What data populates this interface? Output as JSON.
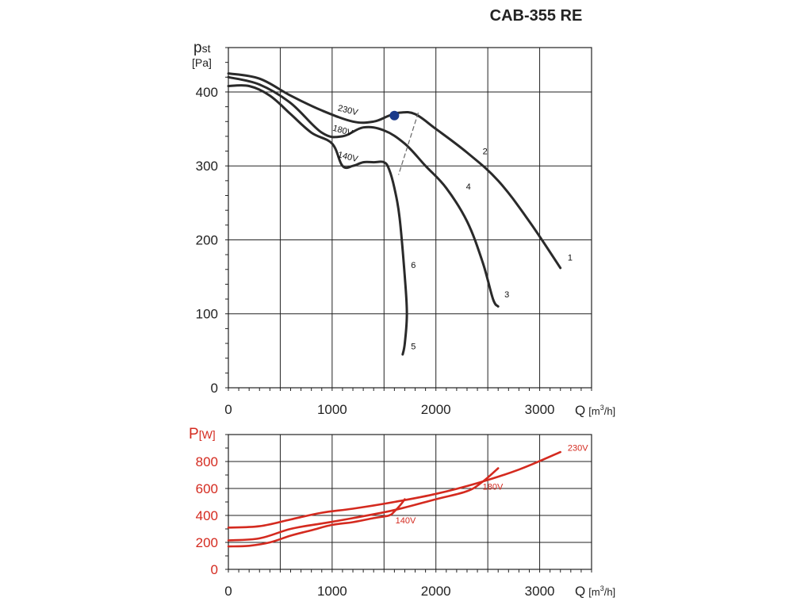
{
  "title": "CAB-355 RE",
  "colors": {
    "pressure_curve": "#2a2a2a",
    "power_curve": "#d42a1f",
    "operating_point": "#1a3a8a",
    "axis": "#222222"
  },
  "chart_data": [
    {
      "type": "line",
      "title": "CAB-355 RE",
      "ylabel_main": "p",
      "ylabel_sub": "st",
      "yunit": "[Pa]",
      "xlabel": "Q",
      "xunit_pre": "[m",
      "xunit_sup": "3",
      "xunit_post": "/h]",
      "xlim": [
        0,
        3500
      ],
      "ylim": [
        0,
        460
      ],
      "x_ticks": [
        0,
        1000,
        2000,
        3000
      ],
      "y_ticks": [
        0,
        100,
        200,
        300,
        400
      ],
      "grid": true,
      "series": [
        {
          "name": "230V",
          "x": [
            0,
            300,
            600,
            900,
            1200,
            1400,
            1550,
            1650,
            1800,
            2000,
            2300,
            2600,
            2900,
            3200
          ],
          "y": [
            425,
            418,
            395,
            375,
            360,
            360,
            368,
            372,
            370,
            350,
            318,
            280,
            225,
            162
          ]
        },
        {
          "name": "180V",
          "x": [
            0,
            300,
            600,
            900,
            1100,
            1300,
            1500,
            1700,
            1900,
            2100,
            2300,
            2450,
            2550,
            2600
          ],
          "y": [
            420,
            410,
            385,
            345,
            340,
            352,
            348,
            330,
            300,
            270,
            225,
            170,
            120,
            110
          ]
        },
        {
          "name": "140V",
          "x": [
            0,
            200,
            400,
            600,
            800,
            1000,
            1100,
            1200,
            1300,
            1400,
            1500,
            1550,
            1600,
            1650,
            1700,
            1720,
            1700,
            1680
          ],
          "y": [
            408,
            408,
            395,
            370,
            345,
            330,
            300,
            300,
            305,
            305,
            305,
            295,
            270,
            230,
            150,
            100,
            60,
            45
          ]
        }
      ],
      "curve_numbers": [
        {
          "label": "1",
          "x": 3270,
          "y": 172
        },
        {
          "label": "2",
          "x": 2450,
          "y": 316
        },
        {
          "label": "3",
          "x": 2660,
          "y": 122
        },
        {
          "label": "4",
          "x": 2290,
          "y": 268
        },
        {
          "label": "5",
          "x": 1760,
          "y": 52
        },
        {
          "label": "6",
          "x": 1760,
          "y": 162
        }
      ],
      "voltage_labels": [
        {
          "label": "230V",
          "x": 1050,
          "y": 375
        },
        {
          "label": "180V",
          "x": 1000,
          "y": 348
        },
        {
          "label": "140V",
          "x": 1050,
          "y": 312
        }
      ],
      "operating_point": {
        "x": 1600,
        "y": 368
      },
      "max_flow_line": {
        "x": [
          1830,
          1640
        ],
        "y": [
          372,
          288
        ]
      }
    },
    {
      "type": "line",
      "ylabel_main": "P",
      "yunit": "[W]",
      "xlabel": "Q",
      "xunit_pre": "[m",
      "xunit_sup": "3",
      "xunit_post": "/h]",
      "xlim": [
        0,
        3500
      ],
      "ylim": [
        0,
        1000
      ],
      "x_ticks": [
        0,
        1000,
        2000,
        3000
      ],
      "y_ticks": [
        0,
        200,
        400,
        600,
        800
      ],
      "grid": true,
      "series": [
        {
          "name": "230V",
          "x": [
            0,
            300,
            600,
            900,
            1200,
            1600,
            2000,
            2400,
            2800,
            3200
          ],
          "y": [
            310,
            320,
            370,
            420,
            450,
            500,
            560,
            640,
            740,
            870
          ]
        },
        {
          "name": "180V",
          "x": [
            0,
            300,
            600,
            900,
            1200,
            1600,
            2000,
            2300,
            2450,
            2600
          ],
          "y": [
            215,
            230,
            300,
            340,
            380,
            440,
            520,
            580,
            650,
            750
          ]
        },
        {
          "name": "140V",
          "x": [
            0,
            200,
            400,
            600,
            800,
            1000,
            1200,
            1400,
            1550,
            1600,
            1650,
            1700
          ],
          "y": [
            170,
            175,
            200,
            250,
            290,
            330,
            350,
            380,
            400,
            430,
            470,
            520
          ]
        }
      ],
      "voltage_labels": [
        {
          "label": "230V",
          "x": 3270,
          "y": 880
        },
        {
          "label": "180V",
          "x": 2450,
          "y": 590
        },
        {
          "label": "140V",
          "x": 1610,
          "y": 340
        }
      ]
    }
  ]
}
